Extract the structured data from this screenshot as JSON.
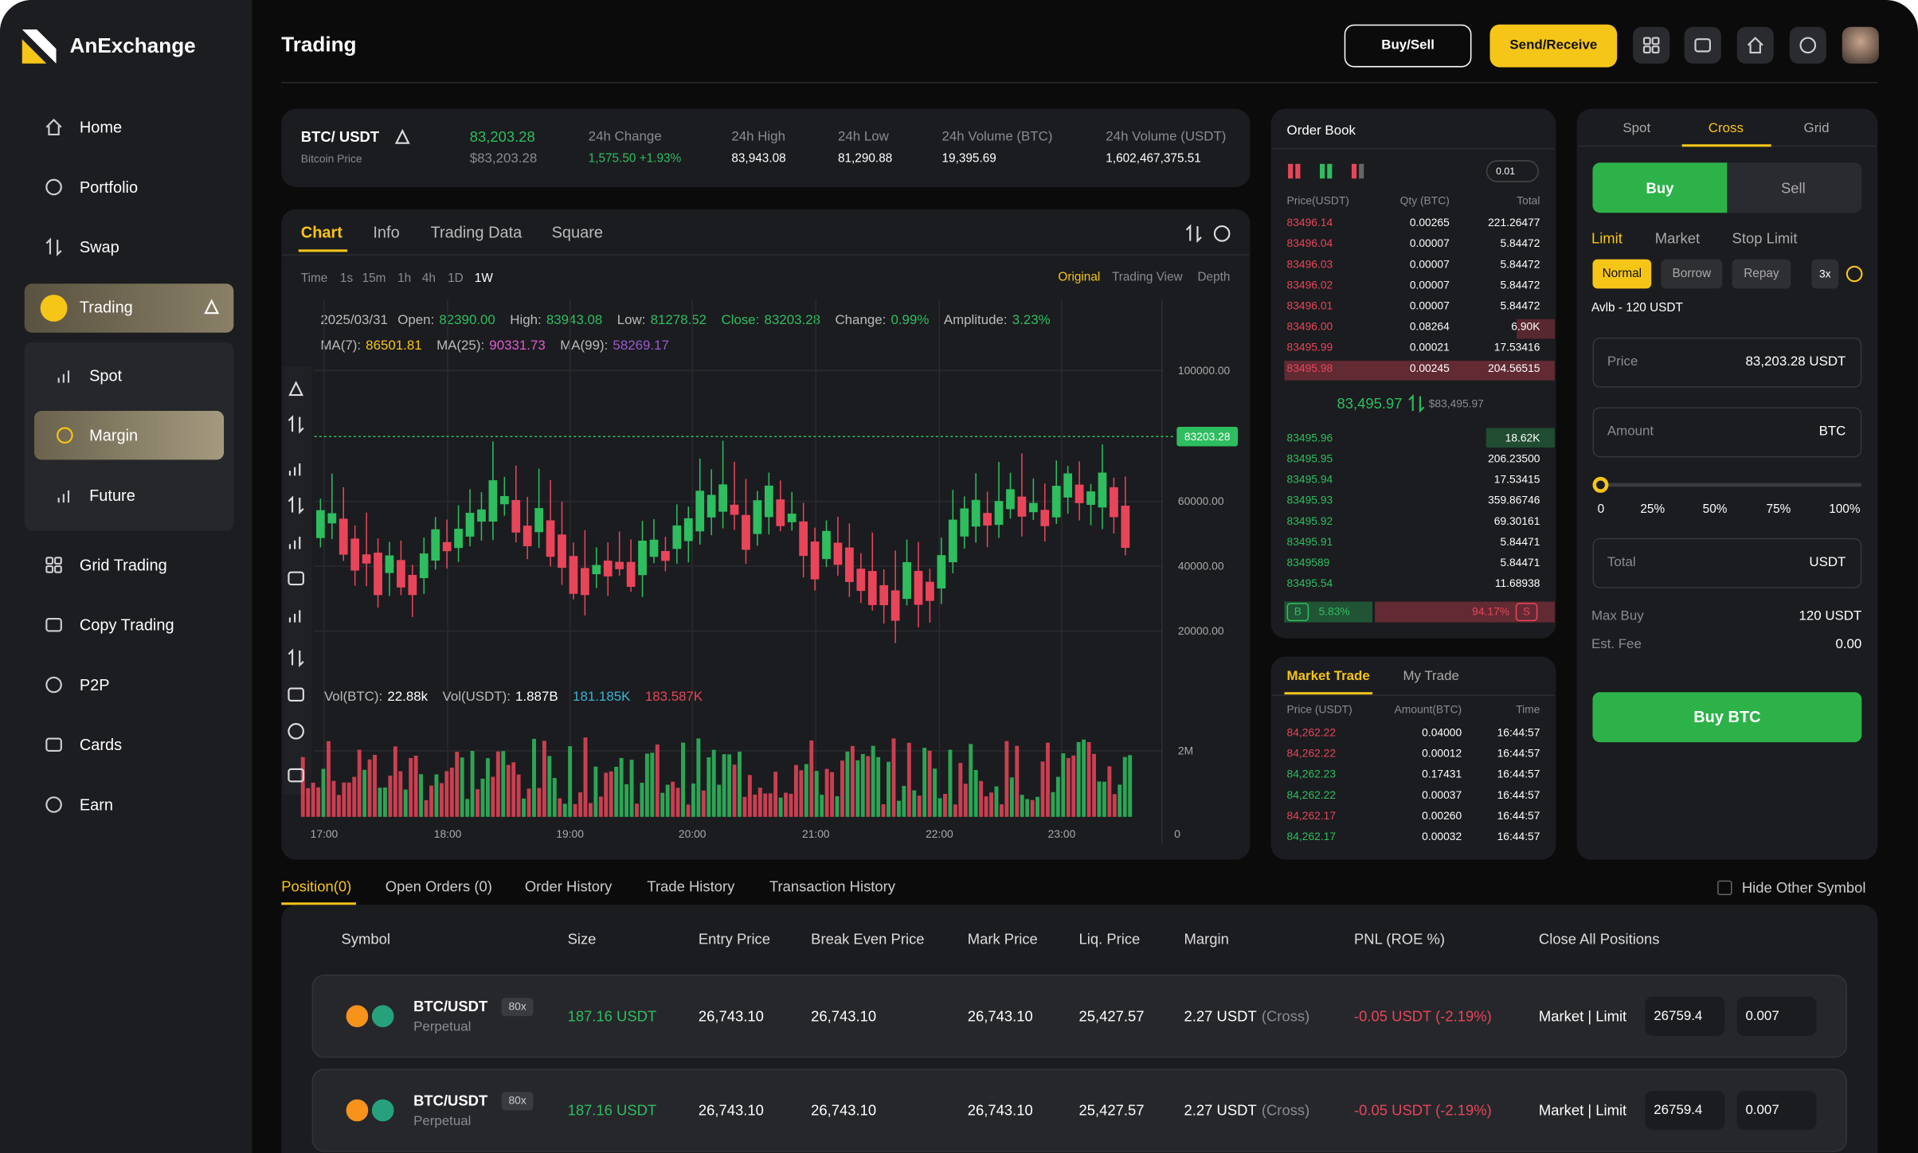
{
  "brand": "AnExchange",
  "nav": {
    "main": [
      "Home",
      "Portfolio",
      "Swap"
    ],
    "trading": "Trading",
    "sub": [
      "Spot",
      "Margin",
      "Future"
    ],
    "more": [
      "Grid Trading",
      "Copy Trading",
      "P2P",
      "Cards",
      "Earn"
    ]
  },
  "header": {
    "title": "Trading",
    "buy_sell": "Buy/Sell",
    "send_receive": "Send/Receive"
  },
  "ticker": {
    "pair": "BTC/ USDT",
    "name": "Bitcoin Price",
    "price": "83,203.28",
    "price_usd": "$83,203.28",
    "stats": [
      {
        "label": "24h Change",
        "value": "1,575.50 +1.93%"
      },
      {
        "label": "24h High",
        "value": "83,943.08"
      },
      {
        "label": "24h Low",
        "value": "81,290.88"
      },
      {
        "label": "24h Volume (BTC)",
        "value": "19,395.69"
      },
      {
        "label": "24h Volume (USDT)",
        "value": "1,602,467,375.51"
      }
    ]
  },
  "chart": {
    "tabs": [
      "Chart",
      "Info",
      "Trading Data",
      "Square"
    ],
    "intervals": [
      "Time",
      "1s",
      "15m",
      "1h",
      "4h",
      "1D",
      "1W"
    ],
    "views": [
      "Original",
      "Trading View",
      "Depth"
    ],
    "date": "2025/03/31",
    "ohlc": [
      {
        "label": "Open:",
        "value": "82390.00"
      },
      {
        "label": "High:",
        "value": "83943.08"
      },
      {
        "label": "Low:",
        "value": "81278.52"
      },
      {
        "label": "Close:",
        "value": "83203.28"
      },
      {
        "label": "Change:",
        "value": "0.99%"
      },
      {
        "label": "Amplitude:",
        "value": "3.23%"
      }
    ],
    "ma": [
      {
        "label": "MA(7):",
        "value": "86501.81"
      },
      {
        "label": "MA(25):",
        "value": "90331.73"
      },
      {
        "label": "MA(99):",
        "value": "58269.17"
      }
    ],
    "price_axis": [
      "100000.00",
      "60000.00",
      "40000.00",
      "20000.00"
    ],
    "last_price": "83203.28",
    "volume": [
      {
        "label": "Vol(BTC):",
        "value": "22.88k"
      },
      {
        "label": "Vol(USDT):",
        "value": "1.887B"
      }
    ],
    "vol_ma": [
      "181.185K",
      "183.587K"
    ],
    "volume_axis": [
      "2M",
      "0"
    ],
    "times": [
      "17:00",
      "18:00",
      "19:00",
      "20:00",
      "21:00",
      "22:00",
      "23:00"
    ]
  },
  "order_book": {
    "title": "Order Book",
    "step": "0.01",
    "headers": [
      "Price(USDT)",
      "Qty (BTC)",
      "Total"
    ],
    "asks": [
      [
        "83496.14",
        "0.00265",
        "221.26477"
      ],
      [
        "83496.04",
        "0.00007",
        "5.84472"
      ],
      [
        "83496.03",
        "0.00007",
        "5.84472"
      ],
      [
        "83496.02",
        "0.00007",
        "5.84472"
      ],
      [
        "83496.01",
        "0.00007",
        "5.84472"
      ],
      [
        "83496.00",
        "0.08264",
        "6.90K"
      ],
      [
        "83495.99",
        "0.00021",
        "17.53416"
      ],
      [
        "83495.98",
        "0.00245",
        "204.56515"
      ]
    ],
    "mid_price": "83,495.97",
    "mid_usd": "$83,495.97",
    "bids": [
      [
        "83495.96",
        "18.62K"
      ],
      [
        "83495.95",
        "206.23500"
      ],
      [
        "83495.94",
        "17.53415"
      ],
      [
        "83495.93",
        "359.86746"
      ],
      [
        "83495.92",
        "69.30161"
      ],
      [
        "83495.91",
        "5.84471"
      ],
      [
        "8349589",
        "5.84471"
      ],
      [
        "83495.54",
        "11.68938"
      ]
    ],
    "buy": "B",
    "buy_ratio": "5.83%",
    "sell_ratio": "94.17%",
    "sell": "S"
  },
  "trades": {
    "tabs": [
      "Market Trade",
      "My Trade"
    ],
    "headers": [
      "Price (USDT)",
      "Amount(BTC)",
      "Time"
    ],
    "rows": [
      {
        "price": "84,262.22",
        "amount": "0.04000",
        "time": "16:44:57",
        "color": "#e8455a"
      },
      {
        "price": "84,262.22",
        "amount": "0.00012",
        "time": "16:44:57",
        "color": "#e8455a"
      },
      {
        "price": "84,262.23",
        "amount": "0.17431",
        "time": "16:44:57",
        "color": "#2ebd5f"
      },
      {
        "price": "84,262.22",
        "amount": "0.00037",
        "time": "16:44:57",
        "color": "#2ebd5f"
      },
      {
        "price": "84,262.17",
        "amount": "0.00260",
        "time": "16:44:57",
        "color": "#e8455a"
      },
      {
        "price": "84,262.17",
        "amount": "0.00032",
        "time": "16:44:57",
        "color": "#2ebd5f"
      }
    ]
  },
  "form": {
    "modes": [
      "Spot",
      "Cross",
      "Grid"
    ],
    "sides": [
      "Buy",
      "Sell"
    ],
    "order_types": [
      "Limit",
      "Market",
      "Stop Limit"
    ],
    "margin_modes": [
      "Normal",
      "Borrow",
      "Repay"
    ],
    "leverage": "3x",
    "available": "Avlb - 120 USDT",
    "price": {
      "label": "Price",
      "value": "83,203.28 USDT"
    },
    "amount": {
      "label": "Amount",
      "unit": "BTC"
    },
    "slider": [
      "0",
      "25%",
      "50%",
      "75%",
      "100%"
    ],
    "total": {
      "label": "Total",
      "unit": "USDT"
    },
    "max_buy": {
      "label": "Max Buy",
      "value": "120 USDT"
    },
    "fee": {
      "label": "Est. Fee",
      "value": "0.00"
    },
    "submit": "Buy BTC"
  },
  "positions": {
    "tabs": [
      "Position(0)",
      "Open Orders (0)",
      "Order History",
      "Trade History",
      "Transaction History"
    ],
    "hide_other": "Hide Other Symbol",
    "headers": [
      "Symbol",
      "Size",
      "Entry Price",
      "Break Even Price",
      "Mark Price",
      "Liq. Price",
      "Margin",
      "PNL (ROE %)",
      "Close All Positions"
    ],
    "rows": [
      {
        "symbol": "BTC/USDT",
        "leverage": "80x",
        "kind": "Perpetual",
        "size": "187.16 USDT",
        "entry": "26,743.10",
        "break_even": "26,743.10",
        "mark": "26,743.10",
        "liq": "25,427.57",
        "margin": "2.27 USDT",
        "margin_mode": "(Cross)",
        "pnl": "-0.05 USDT (-2.19%)",
        "close": "Market | Limit",
        "limit_price": "26759.4",
        "qty": "0.007"
      },
      {
        "symbol": "BTC/USDT",
        "leverage": "80x",
        "kind": "Perpetual",
        "size": "187.16 USDT",
        "entry": "26,743.10",
        "break_even": "26,743.10",
        "mark": "26,743.10",
        "liq": "25,427.57",
        "margin": "2.27 USDT",
        "margin_mode": "(Cross)",
        "pnl": "-0.05 USDT (-2.19%)",
        "close": "Market | Limit",
        "limit_price": "26759.4",
        "qty": "0.007"
      }
    ]
  }
}
